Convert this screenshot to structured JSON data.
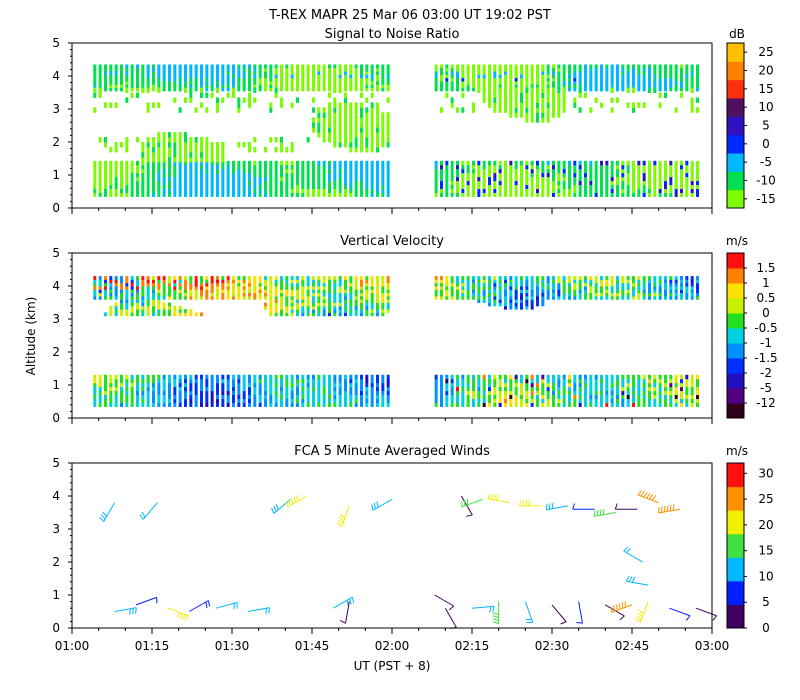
{
  "figure": {
    "title": "T-REX   MAPR 25 Mar 06   03:00 UT   19:02   PST",
    "ylabel": "Altitude (km)",
    "xlabel": "UT  (PST + 8)",
    "x_ticks": [
      "01:00",
      "01:15",
      "01:30",
      "01:45",
      "02:00",
      "02:15",
      "02:30",
      "02:45",
      "03:00"
    ],
    "y_ticks": [
      "0",
      "1",
      "2",
      "3",
      "4",
      "5"
    ]
  },
  "chart_data": [
    {
      "type": "heatmap",
      "title": "Signal to Noise Ratio",
      "units": "dB",
      "xlabel": "UT  (PST + 8)",
      "ylabel": "Altitude (km)",
      "xlim": [
        "01:00",
        "03:00"
      ],
      "ylim": [
        0,
        5
      ],
      "data_gap_ut": [
        "02:00",
        "02:08"
      ],
      "colorbar": {
        "levels": [
          -15,
          -10,
          -5,
          0,
          5,
          10,
          15,
          20,
          25
        ],
        "labels": [
          "-15",
          "-10",
          "-5",
          "0",
          "5",
          "10",
          "15",
          "20",
          "25"
        ],
        "colors": [
          "#7cfc00",
          "#00e050",
          "#00b8ff",
          "#0028ff",
          "#3010c0",
          "#501060",
          "#ff3010",
          "#ff8000",
          "#ffc000"
        ]
      }
    },
    {
      "type": "heatmap",
      "title": "Vertical Velocity",
      "units": "m/s",
      "xlabel": "UT  (PST + 8)",
      "ylabel": "Altitude (km)",
      "xlim": [
        "01:00",
        "03:00"
      ],
      "ylim": [
        0,
        5
      ],
      "data_gap_ut": [
        "02:00",
        "02:08"
      ],
      "colorbar": {
        "levels": [
          -12,
          -5,
          -2,
          -1.5,
          -1,
          -0.5,
          0,
          0.5,
          1,
          1.5
        ],
        "labels": [
          "-12",
          "-5",
          "-2",
          "-1.5",
          "-1",
          "-0.5",
          "0",
          "0.5",
          "1",
          "1.5"
        ],
        "colors": [
          "#300018",
          "#500080",
          "#2010c0",
          "#0030ff",
          "#0090ff",
          "#00d0e0",
          "#20e020",
          "#c8f000",
          "#ffe000",
          "#ff8000",
          "#ff1010"
        ]
      }
    },
    {
      "type": "scatter",
      "title": "FCA 5 Minute Averaged Winds",
      "units": "m/s",
      "xlabel": "UT  (PST + 8)",
      "ylabel": "Altitude (km)",
      "xlim": [
        "01:00",
        "03:00"
      ],
      "ylim": [
        0,
        5
      ],
      "colorbar": {
        "levels": [
          0,
          5,
          10,
          15,
          20,
          25,
          30
        ],
        "labels": [
          "0",
          "5",
          "10",
          "15",
          "20",
          "25",
          "30"
        ],
        "colors": [
          "#400060",
          "#0020ff",
          "#00b8ff",
          "#40e040",
          "#f0f000",
          "#ff9000",
          "#ff1010"
        ]
      },
      "barbs": [
        {
          "t": 8,
          "alt": 0.5,
          "spd": 14,
          "dir": 80
        },
        {
          "t": 12,
          "alt": 0.7,
          "spd": 6,
          "dir": 70
        },
        {
          "t": 18,
          "alt": 0.6,
          "spd": 22,
          "dir": 110
        },
        {
          "t": 22,
          "alt": 0.5,
          "spd": 8,
          "dir": 60
        },
        {
          "t": 27,
          "alt": 0.6,
          "spd": 10,
          "dir": 75
        },
        {
          "t": 33,
          "alt": 0.5,
          "spd": 10,
          "dir": 80
        },
        {
          "t": 49,
          "alt": 0.6,
          "spd": 14,
          "dir": 60
        },
        {
          "t": 52,
          "alt": 0.8,
          "spd": 4,
          "dir": 190
        },
        {
          "t": 68,
          "alt": 1.0,
          "spd": 4,
          "dir": 120
        },
        {
          "t": 70,
          "alt": 0.6,
          "spd": 4,
          "dir": 150
        },
        {
          "t": 75,
          "alt": 0.6,
          "spd": 12,
          "dir": 85
        },
        {
          "t": 80,
          "alt": 0.8,
          "spd": 18,
          "dir": 180
        },
        {
          "t": 85,
          "alt": 0.8,
          "spd": 12,
          "dir": 160
        },
        {
          "t": 90,
          "alt": 0.7,
          "spd": 4,
          "dir": 140
        },
        {
          "t": 95,
          "alt": 0.8,
          "spd": 6,
          "dir": 170
        },
        {
          "t": 100,
          "alt": 0.7,
          "spd": 4,
          "dir": 120
        },
        {
          "t": 105,
          "alt": 0.7,
          "spd": 28,
          "dir": 250
        },
        {
          "t": 108,
          "alt": 0.8,
          "spd": 20,
          "dir": 200
        },
        {
          "t": 112,
          "alt": 0.6,
          "spd": 6,
          "dir": 110
        },
        {
          "t": 117,
          "alt": 0.6,
          "spd": 4,
          "dir": 110
        },
        {
          "t": 8,
          "alt": 3.8,
          "spd": 14,
          "dir": 210
        },
        {
          "t": 16,
          "alt": 3.8,
          "spd": 10,
          "dir": 220
        },
        {
          "t": 41,
          "alt": 3.9,
          "spd": 14,
          "dir": 230
        },
        {
          "t": 44,
          "alt": 4.0,
          "spd": 24,
          "dir": 240
        },
        {
          "t": 52,
          "alt": 3.7,
          "spd": 20,
          "dir": 200
        },
        {
          "t": 60,
          "alt": 3.9,
          "spd": 14,
          "dir": 240
        },
        {
          "t": 73,
          "alt": 4.0,
          "spd": 4,
          "dir": 150
        },
        {
          "t": 77,
          "alt": 3.9,
          "spd": 16,
          "dir": 250
        },
        {
          "t": 82,
          "alt": 3.8,
          "spd": 20,
          "dir": 280
        },
        {
          "t": 88,
          "alt": 3.7,
          "spd": 20,
          "dir": 270
        },
        {
          "t": 93,
          "alt": 3.7,
          "spd": 14,
          "dir": 260
        },
        {
          "t": 98,
          "alt": 3.6,
          "spd": 6,
          "dir": 270
        },
        {
          "t": 102,
          "alt": 3.5,
          "spd": 18,
          "dir": 260
        },
        {
          "t": 106,
          "alt": 3.6,
          "spd": 4,
          "dir": 270
        },
        {
          "t": 110,
          "alt": 3.8,
          "spd": 28,
          "dir": 290
        },
        {
          "t": 114,
          "alt": 3.6,
          "spd": 28,
          "dir": 260
        },
        {
          "t": 107,
          "alt": 2.0,
          "spd": 12,
          "dir": 300
        },
        {
          "t": 108,
          "alt": 1.3,
          "spd": 14,
          "dir": 280
        }
      ]
    }
  ]
}
